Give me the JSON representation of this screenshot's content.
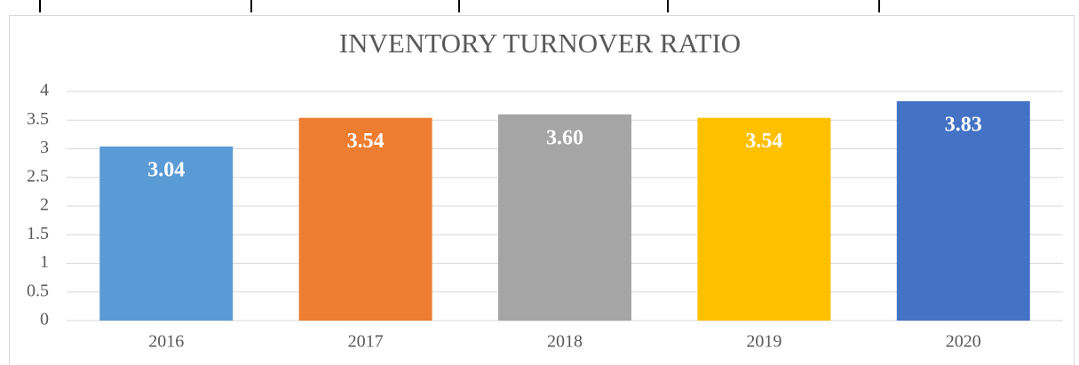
{
  "chart_data": {
    "type": "bar",
    "title": "INVENTORY TURNOVER RATIO",
    "categories": [
      "2016",
      "2017",
      "2018",
      "2019",
      "2020"
    ],
    "values": [
      3.04,
      3.54,
      3.6,
      3.54,
      3.83
    ],
    "value_labels": [
      "3.04",
      "3.54",
      "3.60",
      "3.54",
      "3.83"
    ],
    "colors": [
      "#5b9bd5",
      "#ed7d31",
      "#a5a5a5",
      "#ffc000",
      "#4472c4"
    ],
    "ylim": [
      0,
      4
    ],
    "yticks": [
      0,
      0.5,
      1,
      1.5,
      2,
      2.5,
      3,
      3.5,
      4
    ],
    "grid": true
  }
}
